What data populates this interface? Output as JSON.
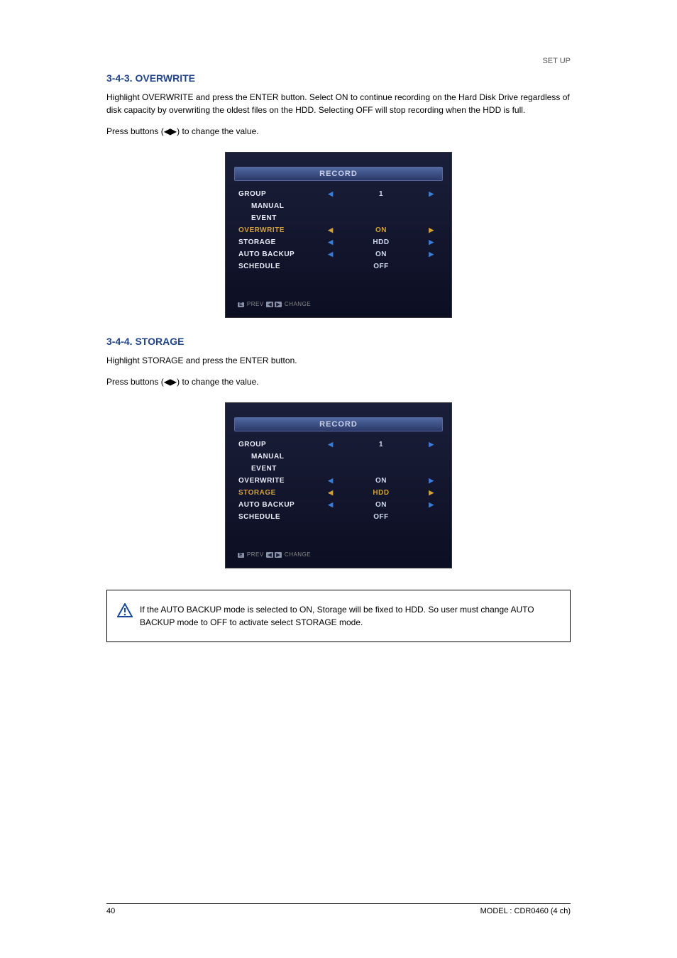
{
  "page": {
    "header_right": "SET UP",
    "footer_page": "40",
    "footer_model": "MODEL : CDR0460 (4 ch)"
  },
  "sections": {
    "sec1": {
      "title": "3-4-3. OVERWRITE",
      "para1": "Highlight OVERWRITE and press the ENTER button. Select ON to continue recording on the Hard Disk Drive regardless of disk capacity by overwriting the oldest files on the HDD. Selecting OFF will stop recording when the HDD is full.",
      "para2": "Press buttons (◀▶) to change the value."
    },
    "sec2": {
      "title": "3-4-4. STORAGE",
      "para1": "Highlight STORAGE and press the ENTER button.",
      "para2": "Press buttons (◀▶) to change the value."
    },
    "note": "If the AUTO BACKUP mode is selected to ON, Storage will be fixed to HDD. So user must change AUTO BACKUP mode to OFF to activate select STORAGE mode."
  },
  "panelA": {
    "title": "RECORD",
    "rows": [
      {
        "label": "GROUP",
        "indent": false,
        "left": true,
        "value": "1",
        "right": true,
        "label_color": "#e8ecf8",
        "value_color": "#d0d8f0",
        "arrow_color": "#3a7dd8"
      },
      {
        "label": "MANUAL",
        "indent": true,
        "left": false,
        "value": "",
        "right": false,
        "label_color": "#e8ecf8",
        "value_color": "#d0d8f0",
        "arrow_color": "#3a7dd8"
      },
      {
        "label": "EVENT",
        "indent": true,
        "left": false,
        "value": "",
        "right": false,
        "label_color": "#e8ecf8",
        "value_color": "#d0d8f0",
        "arrow_color": "#3a7dd8"
      },
      {
        "label": "OVERWRITE",
        "indent": false,
        "left": true,
        "value": "ON",
        "right": true,
        "label_color": "#d2a23a",
        "value_color": "#d2a23a",
        "arrow_color": "#d2a23a"
      },
      {
        "label": "STORAGE",
        "indent": false,
        "left": true,
        "value": "HDD",
        "right": true,
        "label_color": "#e8ecf8",
        "value_color": "#d0d8f0",
        "arrow_color": "#3a7dd8"
      },
      {
        "label": "AUTO BACKUP",
        "indent": false,
        "left": true,
        "value": "ON",
        "right": true,
        "label_color": "#e8ecf8",
        "value_color": "#d0d8f0",
        "arrow_color": "#3a7dd8"
      },
      {
        "label": "SCHEDULE",
        "indent": false,
        "left": false,
        "value": "OFF",
        "right": false,
        "label_color": "#e8ecf8",
        "value_color": "#d0d8f0",
        "arrow_color": "#3a7dd8"
      }
    ],
    "footer_prev": "PREV",
    "footer_change": "CHANGE"
  },
  "panelB": {
    "title": "RECORD",
    "rows": [
      {
        "label": "GROUP",
        "indent": false,
        "left": true,
        "value": "1",
        "right": true,
        "label_color": "#e8ecf8",
        "value_color": "#d0d8f0",
        "arrow_color": "#3a7dd8"
      },
      {
        "label": "MANUAL",
        "indent": true,
        "left": false,
        "value": "",
        "right": false,
        "label_color": "#e8ecf8",
        "value_color": "#d0d8f0",
        "arrow_color": "#3a7dd8"
      },
      {
        "label": "EVENT",
        "indent": true,
        "left": false,
        "value": "",
        "right": false,
        "label_color": "#e8ecf8",
        "value_color": "#d0d8f0",
        "arrow_color": "#3a7dd8"
      },
      {
        "label": "OVERWRITE",
        "indent": false,
        "left": true,
        "value": "ON",
        "right": true,
        "label_color": "#e8ecf8",
        "value_color": "#d0d8f0",
        "arrow_color": "#3a7dd8"
      },
      {
        "label": "STORAGE",
        "indent": false,
        "left": true,
        "value": "HDD",
        "right": true,
        "label_color": "#d2a23a",
        "value_color": "#d2a23a",
        "arrow_color": "#d2a23a"
      },
      {
        "label": "AUTO BACKUP",
        "indent": false,
        "left": true,
        "value": "ON",
        "right": true,
        "label_color": "#e8ecf8",
        "value_color": "#d0d8f0",
        "arrow_color": "#3a7dd8"
      },
      {
        "label": "SCHEDULE",
        "indent": false,
        "left": false,
        "value": "OFF",
        "right": false,
        "label_color": "#e8ecf8",
        "value_color": "#d0d8f0",
        "arrow_color": "#3a7dd8"
      }
    ],
    "footer_prev": "PREV",
    "footer_change": "CHANGE"
  }
}
